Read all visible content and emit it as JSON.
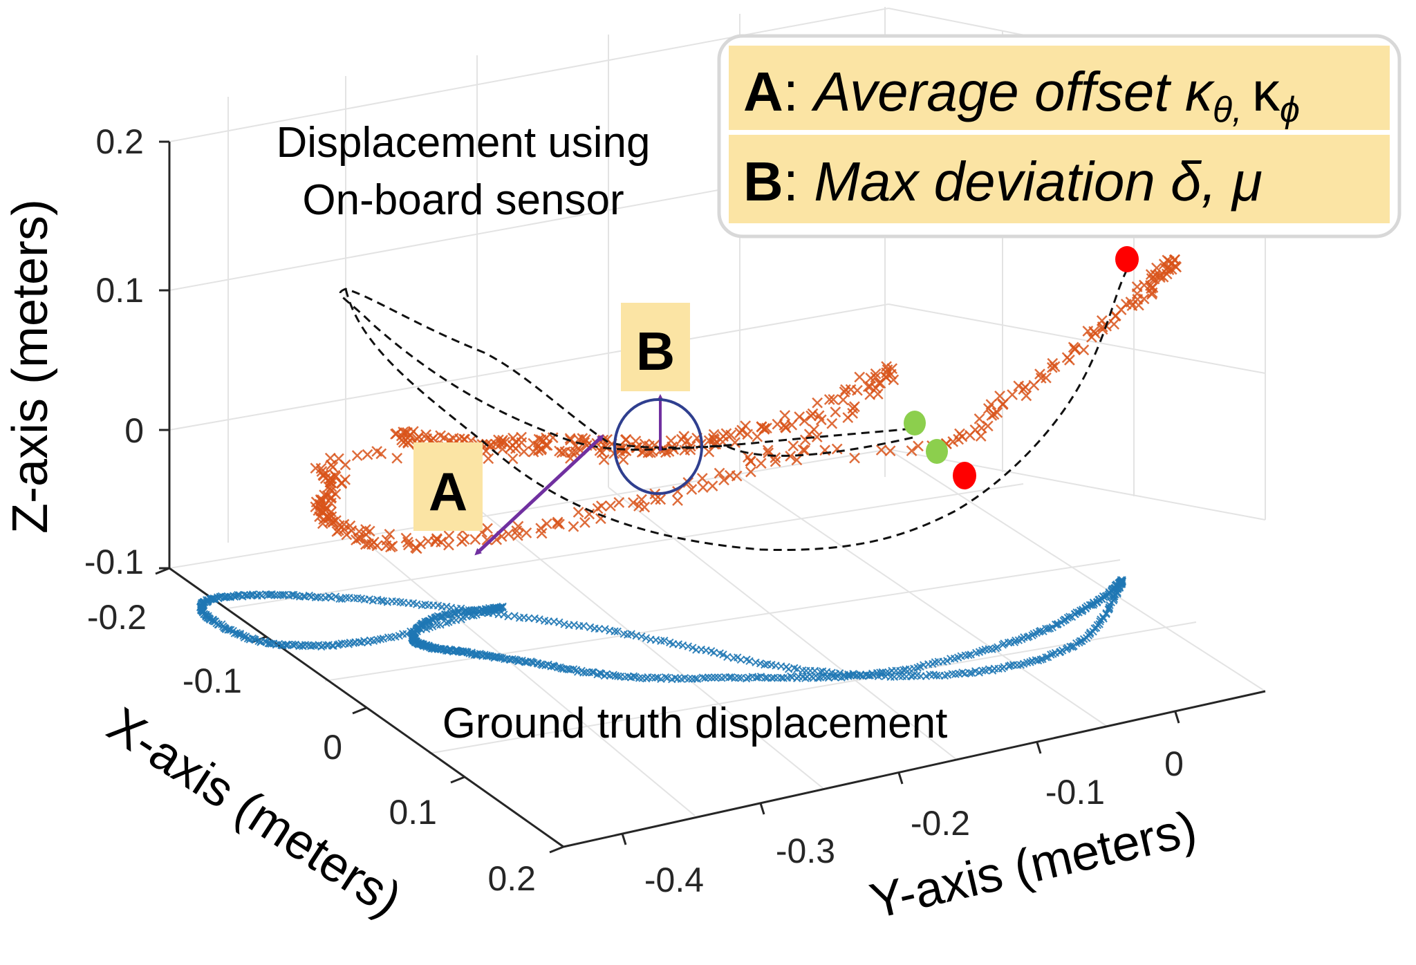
{
  "chart_data": {
    "type": "scatter",
    "projection": "3d",
    "xlabel": "X-axis (meters)",
    "ylabel": "Y-axis (meters)",
    "zlabel": "Z-axis (meters)",
    "x_ticks": [
      "-0.2",
      "-0.1",
      "0",
      "0.1",
      "0.2"
    ],
    "y_ticks": [
      "-0.4",
      "-0.3",
      "-0.2",
      "-0.1",
      "0"
    ],
    "z_ticks": [
      "0.2",
      "0.1",
      "0",
      "-0.1"
    ],
    "xlim": [
      -0.2,
      0.2
    ],
    "ylim": [
      -0.45,
      0.0
    ],
    "zlim": [
      -0.1,
      0.2
    ],
    "grid": true,
    "series": [
      {
        "name": "Ground truth displacement",
        "color": "#1f77b4",
        "marker": "x",
        "closed_loop": true,
        "points": [
          [
            -0.18,
            -0.36,
            0.07
          ],
          [
            -0.16,
            -0.38,
            0.06
          ],
          [
            -0.14,
            -0.38,
            0.04
          ],
          [
            -0.12,
            -0.36,
            0.02
          ],
          [
            -0.1,
            -0.33,
            0.0
          ],
          [
            -0.09,
            -0.29,
            -0.02
          ],
          [
            -0.09,
            -0.24,
            -0.04
          ],
          [
            -0.1,
            -0.18,
            -0.05
          ],
          [
            -0.12,
            -0.13,
            -0.05
          ],
          [
            -0.15,
            -0.08,
            -0.03
          ],
          [
            -0.18,
            -0.06,
            0.0
          ],
          [
            -0.2,
            -0.06,
            0.02
          ],
          [
            -0.18,
            -0.07,
            -0.02
          ],
          [
            -0.12,
            -0.09,
            -0.06
          ],
          [
            -0.04,
            -0.12,
            -0.09
          ],
          [
            0.04,
            -0.16,
            -0.1
          ],
          [
            0.1,
            -0.22,
            -0.1
          ],
          [
            0.12,
            -0.28,
            -0.09
          ],
          [
            0.1,
            -0.33,
            -0.07
          ],
          [
            0.04,
            -0.37,
            -0.04
          ],
          [
            -0.04,
            -0.39,
            -0.01
          ],
          [
            -0.12,
            -0.39,
            0.03
          ],
          [
            -0.18,
            -0.36,
            0.07
          ]
        ]
      },
      {
        "name": "Displacement using On-board sensor",
        "color": "#d95319",
        "marker": "x",
        "points": [
          [
            -0.16,
            -0.4,
            0.16
          ],
          [
            -0.14,
            -0.37,
            0.14
          ],
          [
            -0.12,
            -0.33,
            0.12
          ],
          [
            -0.1,
            -0.29,
            0.1
          ],
          [
            -0.08,
            -0.25,
            0.08
          ],
          [
            -0.06,
            -0.21,
            0.06
          ],
          [
            -0.05,
            -0.17,
            0.05
          ],
          [
            -0.05,
            -0.13,
            0.05
          ],
          [
            -0.06,
            -0.09,
            0.07
          ],
          [
            -0.04,
            -0.12,
            0.03
          ],
          [
            -0.01,
            -0.17,
            0.0
          ],
          [
            0.02,
            -0.22,
            -0.02
          ],
          [
            0.03,
            -0.27,
            -0.02
          ],
          [
            0.02,
            -0.31,
            0.0
          ],
          [
            -0.02,
            -0.35,
            0.04
          ],
          [
            -0.08,
            -0.38,
            0.09
          ],
          [
            -0.14,
            -0.4,
            0.14
          ],
          [
            -0.05,
            -0.08,
            0.02
          ],
          [
            -0.09,
            -0.05,
            0.06
          ],
          [
            -0.13,
            -0.03,
            0.11
          ],
          [
            -0.16,
            -0.02,
            0.15
          ],
          [
            -0.18,
            -0.02,
            0.17
          ]
        ]
      }
    ],
    "markers": [
      {
        "name": "start-ground-truth",
        "color": "#8ccf4d"
      },
      {
        "name": "start-on-board",
        "color": "#8ccf4d"
      },
      {
        "name": "end-on-board",
        "color": "#ff0000"
      },
      {
        "name": "end-ground-truth",
        "color": "#ff0000"
      }
    ],
    "annotations": {
      "onboard_label_line1": "Displacement using",
      "onboard_label_line2": "On-board sensor",
      "ground_truth_label": "Ground truth displacement",
      "box_A": "A",
      "box_B": "B",
      "arrow_color": "#7030a0",
      "circle_color": "#2f3f8f",
      "box_fill": "#fbe4a4"
    },
    "legend": {
      "placement": "top-right",
      "rows": [
        {
          "key": "A",
          "sep": ": ",
          "text": "Average offset κ",
          "sub1": "θ, ",
          "mid": "κ",
          "sub2": "ϕ"
        },
        {
          "key": "B",
          "sep": ": ",
          "text": "Max deviation δ, μ"
        }
      ]
    }
  }
}
